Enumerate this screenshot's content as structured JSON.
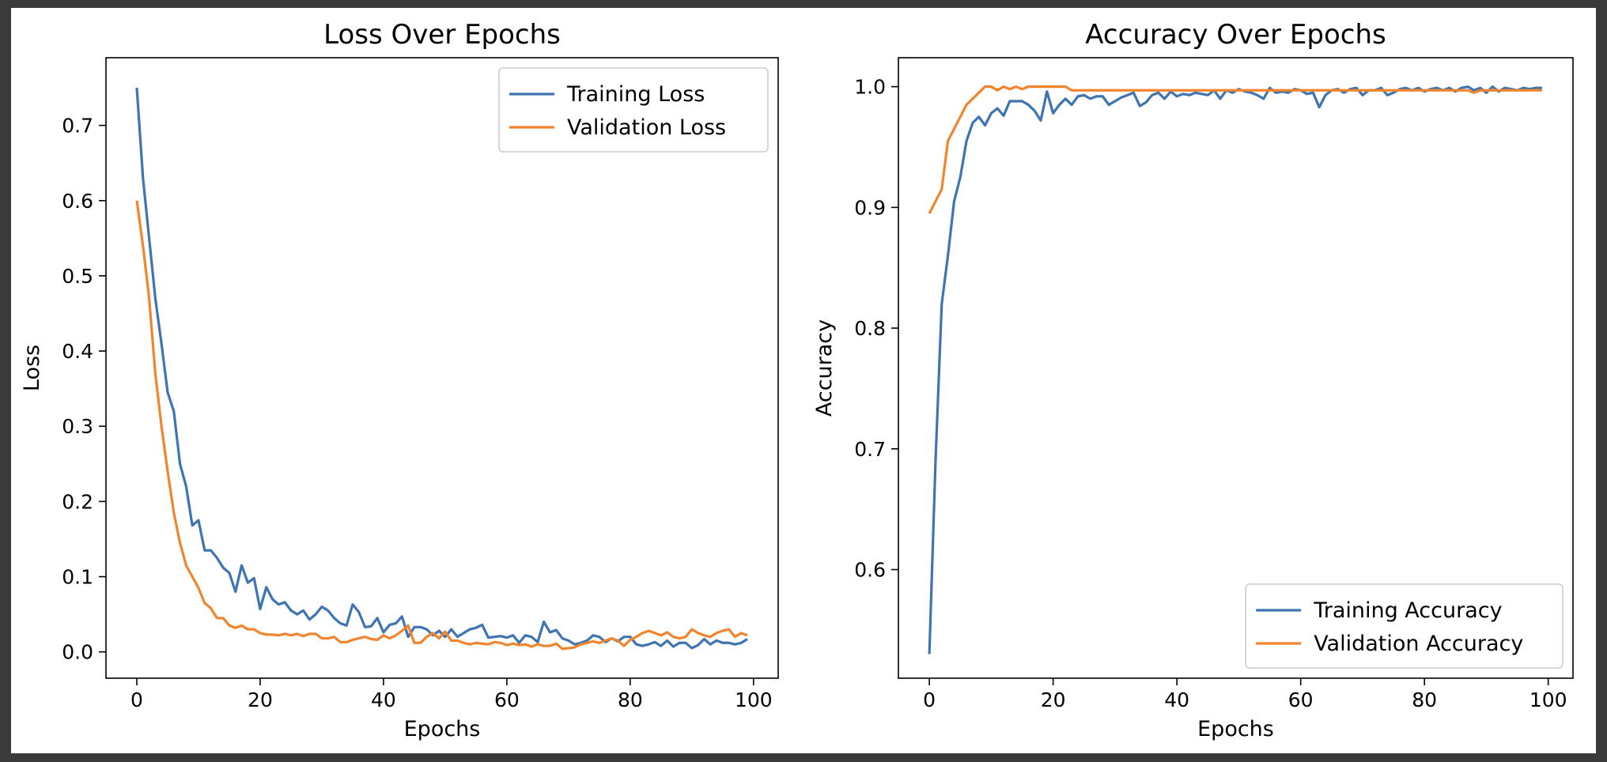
{
  "chart_data": [
    {
      "type": "line",
      "title": "Loss Over Epochs",
      "xlabel": "Epochs",
      "ylabel": "Loss",
      "xlim": [
        -5,
        104
      ],
      "ylim": [
        -0.035,
        0.79
      ],
      "xticks": [
        0,
        20,
        40,
        60,
        80,
        100
      ],
      "yticks": [
        0.0,
        0.1,
        0.2,
        0.3,
        0.4,
        0.5,
        0.6,
        0.7
      ],
      "ytick_labels": [
        "0.0",
        "0.1",
        "0.2",
        "0.3",
        "0.4",
        "0.5",
        "0.6",
        "0.7"
      ],
      "grid": false,
      "legend_position": "top-right",
      "series": [
        {
          "name": "Training Loss",
          "color": "#3e74b1",
          "x": [
            0,
            1,
            2,
            3,
            4,
            5,
            6,
            7,
            8,
            9,
            10,
            11,
            12,
            13,
            14,
            15,
            16,
            17,
            18,
            19,
            20,
            21,
            22,
            23,
            24,
            25,
            26,
            27,
            28,
            29,
            30,
            31,
            32,
            33,
            34,
            35,
            36,
            37,
            38,
            39,
            40,
            41,
            42,
            43,
            44,
            45,
            46,
            47,
            48,
            49,
            50,
            51,
            52,
            53,
            54,
            55,
            56,
            57,
            58,
            59,
            60,
            61,
            62,
            63,
            64,
            65,
            66,
            67,
            68,
            69,
            70,
            71,
            72,
            73,
            74,
            75,
            76,
            77,
            78,
            79,
            80,
            81,
            82,
            83,
            84,
            85,
            86,
            87,
            88,
            89,
            90,
            91,
            92,
            93,
            94,
            95,
            96,
            97,
            98,
            99
          ],
          "values": [
            0.75,
            0.63,
            0.55,
            0.47,
            0.41,
            0.345,
            0.32,
            0.25,
            0.22,
            0.168,
            0.175,
            0.135,
            0.135,
            0.125,
            0.112,
            0.105,
            0.08,
            0.115,
            0.092,
            0.098,
            0.057,
            0.086,
            0.07,
            0.063,
            0.066,
            0.055,
            0.05,
            0.055,
            0.043,
            0.05,
            0.06,
            0.055,
            0.045,
            0.038,
            0.035,
            0.063,
            0.053,
            0.033,
            0.034,
            0.045,
            0.026,
            0.036,
            0.038,
            0.047,
            0.02,
            0.033,
            0.033,
            0.03,
            0.022,
            0.028,
            0.02,
            0.03,
            0.02,
            0.025,
            0.03,
            0.032,
            0.036,
            0.019,
            0.02,
            0.021,
            0.019,
            0.022,
            0.012,
            0.022,
            0.02,
            0.013,
            0.04,
            0.026,
            0.029,
            0.018,
            0.015,
            0.01,
            0.012,
            0.015,
            0.022,
            0.02,
            0.013,
            0.018,
            0.014,
            0.02,
            0.02,
            0.01,
            0.008,
            0.01,
            0.013,
            0.008,
            0.015,
            0.007,
            0.012,
            0.012,
            0.005,
            0.009,
            0.017,
            0.01,
            0.015,
            0.012,
            0.012,
            0.01,
            0.012,
            0.017
          ]
        },
        {
          "name": "Validation Loss",
          "color": "#f0852d",
          "x": [
            0,
            1,
            2,
            3,
            4,
            5,
            6,
            7,
            8,
            9,
            10,
            11,
            12,
            13,
            14,
            15,
            16,
            17,
            18,
            19,
            20,
            21,
            22,
            23,
            24,
            25,
            26,
            27,
            28,
            29,
            30,
            31,
            32,
            33,
            34,
            35,
            36,
            37,
            38,
            39,
            40,
            41,
            42,
            43,
            44,
            45,
            46,
            47,
            48,
            49,
            50,
            51,
            52,
            53,
            54,
            55,
            56,
            57,
            58,
            59,
            60,
            61,
            62,
            63,
            64,
            65,
            66,
            67,
            68,
            69,
            70,
            71,
            72,
            73,
            74,
            75,
            76,
            77,
            78,
            79,
            80,
            81,
            82,
            83,
            84,
            85,
            86,
            87,
            88,
            89,
            90,
            91,
            92,
            93,
            94,
            95,
            96,
            97,
            98,
            99
          ],
          "values": [
            0.6,
            0.54,
            0.47,
            0.37,
            0.3,
            0.24,
            0.185,
            0.145,
            0.115,
            0.1,
            0.085,
            0.065,
            0.058,
            0.045,
            0.045,
            0.035,
            0.032,
            0.035,
            0.03,
            0.03,
            0.025,
            0.023,
            0.023,
            0.022,
            0.024,
            0.022,
            0.024,
            0.021,
            0.024,
            0.024,
            0.018,
            0.018,
            0.02,
            0.013,
            0.013,
            0.016,
            0.018,
            0.02,
            0.017,
            0.016,
            0.022,
            0.018,
            0.022,
            0.028,
            0.035,
            0.012,
            0.012,
            0.02,
            0.025,
            0.018,
            0.027,
            0.015,
            0.015,
            0.012,
            0.01,
            0.012,
            0.011,
            0.01,
            0.013,
            0.012,
            0.009,
            0.011,
            0.009,
            0.01,
            0.007,
            0.01,
            0.008,
            0.008,
            0.011,
            0.004,
            0.005,
            0.006,
            0.01,
            0.012,
            0.014,
            0.012,
            0.015,
            0.018,
            0.015,
            0.008,
            0.016,
            0.02,
            0.025,
            0.028,
            0.025,
            0.022,
            0.026,
            0.02,
            0.018,
            0.02,
            0.03,
            0.025,
            0.022,
            0.02,
            0.025,
            0.028,
            0.03,
            0.02,
            0.025,
            0.022
          ]
        }
      ]
    },
    {
      "type": "line",
      "title": "Accuracy Over Epochs",
      "xlabel": "Epochs",
      "ylabel": "Accuracy",
      "xlim": [
        -5,
        104
      ],
      "ylim": [
        0.51,
        1.024
      ],
      "xticks": [
        0,
        20,
        40,
        60,
        80,
        100
      ],
      "yticks": [
        0.6,
        0.7,
        0.8,
        0.9,
        1.0
      ],
      "ytick_labels": [
        "0.6",
        "0.7",
        "0.8",
        "0.9",
        "1.0"
      ],
      "grid": false,
      "legend_position": "bottom-right",
      "series": [
        {
          "name": "Training Accuracy",
          "color": "#3e74b1",
          "x": [
            0,
            1,
            2,
            3,
            4,
            5,
            6,
            7,
            8,
            9,
            10,
            11,
            12,
            13,
            14,
            15,
            16,
            17,
            18,
            19,
            20,
            21,
            22,
            23,
            24,
            25,
            26,
            27,
            28,
            29,
            30,
            31,
            32,
            33,
            34,
            35,
            36,
            37,
            38,
            39,
            40,
            41,
            42,
            43,
            44,
            45,
            46,
            47,
            48,
            49,
            50,
            51,
            52,
            53,
            54,
            55,
            56,
            57,
            58,
            59,
            60,
            61,
            62,
            63,
            64,
            65,
            66,
            67,
            68,
            69,
            70,
            71,
            72,
            73,
            74,
            75,
            76,
            77,
            78,
            79,
            80,
            81,
            82,
            83,
            84,
            85,
            86,
            87,
            88,
            89,
            90,
            91,
            92,
            93,
            94,
            95,
            96,
            97,
            98,
            99
          ],
          "values": [
            0.53,
            0.69,
            0.82,
            0.86,
            0.905,
            0.925,
            0.955,
            0.97,
            0.975,
            0.968,
            0.978,
            0.982,
            0.976,
            0.988,
            0.988,
            0.988,
            0.985,
            0.98,
            0.972,
            0.996,
            0.978,
            0.985,
            0.99,
            0.985,
            0.992,
            0.993,
            0.99,
            0.992,
            0.992,
            0.985,
            0.988,
            0.991,
            0.993,
            0.995,
            0.984,
            0.987,
            0.993,
            0.995,
            0.99,
            0.996,
            0.992,
            0.994,
            0.993,
            0.995,
            0.994,
            0.993,
            0.997,
            0.99,
            0.997,
            0.995,
            0.998,
            0.996,
            0.995,
            0.993,
            0.99,
            0.999,
            0.995,
            0.996,
            0.995,
            0.998,
            0.997,
            0.994,
            0.995,
            0.983,
            0.993,
            0.997,
            0.998,
            0.995,
            0.998,
            0.999,
            0.993,
            0.997,
            0.997,
            0.999,
            0.993,
            0.995,
            0.998,
            0.999,
            0.997,
            0.999,
            0.996,
            0.998,
            0.999,
            0.997,
            0.999,
            0.996,
            0.999,
            1.0,
            0.997,
            0.999,
            0.995,
            1.0,
            0.996,
            0.999,
            0.998,
            0.997,
            0.999,
            0.998,
            0.999,
            0.999
          ]
        },
        {
          "name": "Validation Accuracy",
          "color": "#f0852d",
          "x": [
            0,
            1,
            2,
            3,
            4,
            5,
            6,
            7,
            8,
            9,
            10,
            11,
            12,
            13,
            14,
            15,
            16,
            17,
            18,
            19,
            20,
            21,
            22,
            23,
            24,
            25,
            26,
            27,
            28,
            29,
            30,
            31,
            32,
            33,
            34,
            35,
            36,
            37,
            38,
            39,
            40,
            41,
            42,
            43,
            44,
            45,
            46,
            47,
            48,
            49,
            50,
            51,
            52,
            53,
            54,
            55,
            56,
            57,
            58,
            59,
            60,
            61,
            62,
            63,
            64,
            65,
            66,
            67,
            68,
            69,
            70,
            71,
            72,
            73,
            74,
            75,
            76,
            77,
            78,
            79,
            80,
            81,
            82,
            83,
            84,
            85,
            86,
            87,
            88,
            89,
            90,
            91,
            92,
            93,
            94,
            95,
            96,
            97,
            98,
            99
          ],
          "values": [
            0.895,
            0.905,
            0.915,
            0.955,
            0.965,
            0.975,
            0.985,
            0.99,
            0.995,
            1.0,
            1.0,
            0.997,
            1.0,
            0.998,
            1.0,
            0.998,
            1.0,
            1.0,
            1.0,
            1.0,
            1.0,
            1.0,
            1.0,
            0.997,
            0.997,
            0.997,
            0.997,
            0.997,
            0.997,
            0.997,
            0.997,
            0.997,
            0.997,
            0.997,
            0.997,
            0.997,
            0.997,
            0.997,
            0.997,
            0.997,
            0.997,
            0.997,
            0.997,
            0.997,
            0.997,
            0.997,
            0.997,
            0.997,
            0.997,
            0.997,
            0.997,
            0.997,
            0.997,
            0.997,
            0.997,
            0.997,
            0.997,
            0.997,
            0.997,
            0.997,
            0.997,
            0.997,
            0.997,
            0.997,
            0.997,
            0.997,
            0.997,
            0.997,
            0.997,
            0.997,
            0.997,
            0.997,
            0.997,
            0.997,
            0.997,
            0.997,
            0.997,
            0.997,
            0.997,
            0.997,
            0.997,
            0.997,
            0.997,
            0.997,
            0.997,
            0.997,
            0.997,
            0.997,
            0.995,
            0.997,
            0.997,
            0.997,
            0.997,
            0.997,
            0.997,
            0.997,
            0.997,
            0.997,
            0.997,
            0.997
          ]
        }
      ]
    }
  ]
}
